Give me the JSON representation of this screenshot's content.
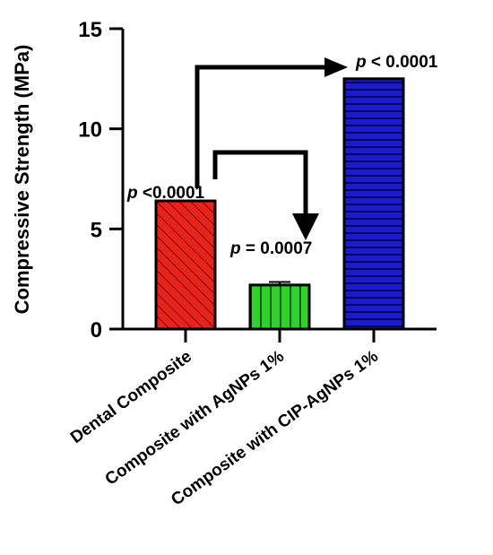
{
  "chart_data": {
    "type": "bar",
    "title": "",
    "xlabel": "",
    "ylabel": "Compressive Strength (MPa)",
    "ylim": [
      0,
      15
    ],
    "yticks": [
      0,
      5,
      10,
      15
    ],
    "grid": false,
    "categories": [
      "Dental Composite",
      "Composite with AgNPs 1%",
      "Composite with CIP-AgNPs 1%"
    ],
    "values": [
      6.4,
      2.2,
      12.5
    ],
    "errors": [
      0.0,
      0.15,
      0.0
    ],
    "bar_colors": [
      "#e8231c",
      "#2fd12a",
      "#1a1ad1"
    ],
    "bar_patterns": [
      "diagonal-hatch",
      "vertical-lines",
      "horizontal-lines"
    ],
    "annotations": [
      {
        "bar": 0,
        "label": "p < 0.0001",
        "p": "p",
        "rest": "<0.0001"
      },
      {
        "bar": 1,
        "label": "p = 0.0007",
        "p": "p",
        "rest": "= 0.0007"
      },
      {
        "bar": 2,
        "label": "p < 0.0001",
        "p": "p",
        "rest": "< 0.0001"
      }
    ],
    "comparisons": [
      {
        "from": 0,
        "to": 2
      },
      {
        "from": 0,
        "to": 1
      }
    ]
  }
}
